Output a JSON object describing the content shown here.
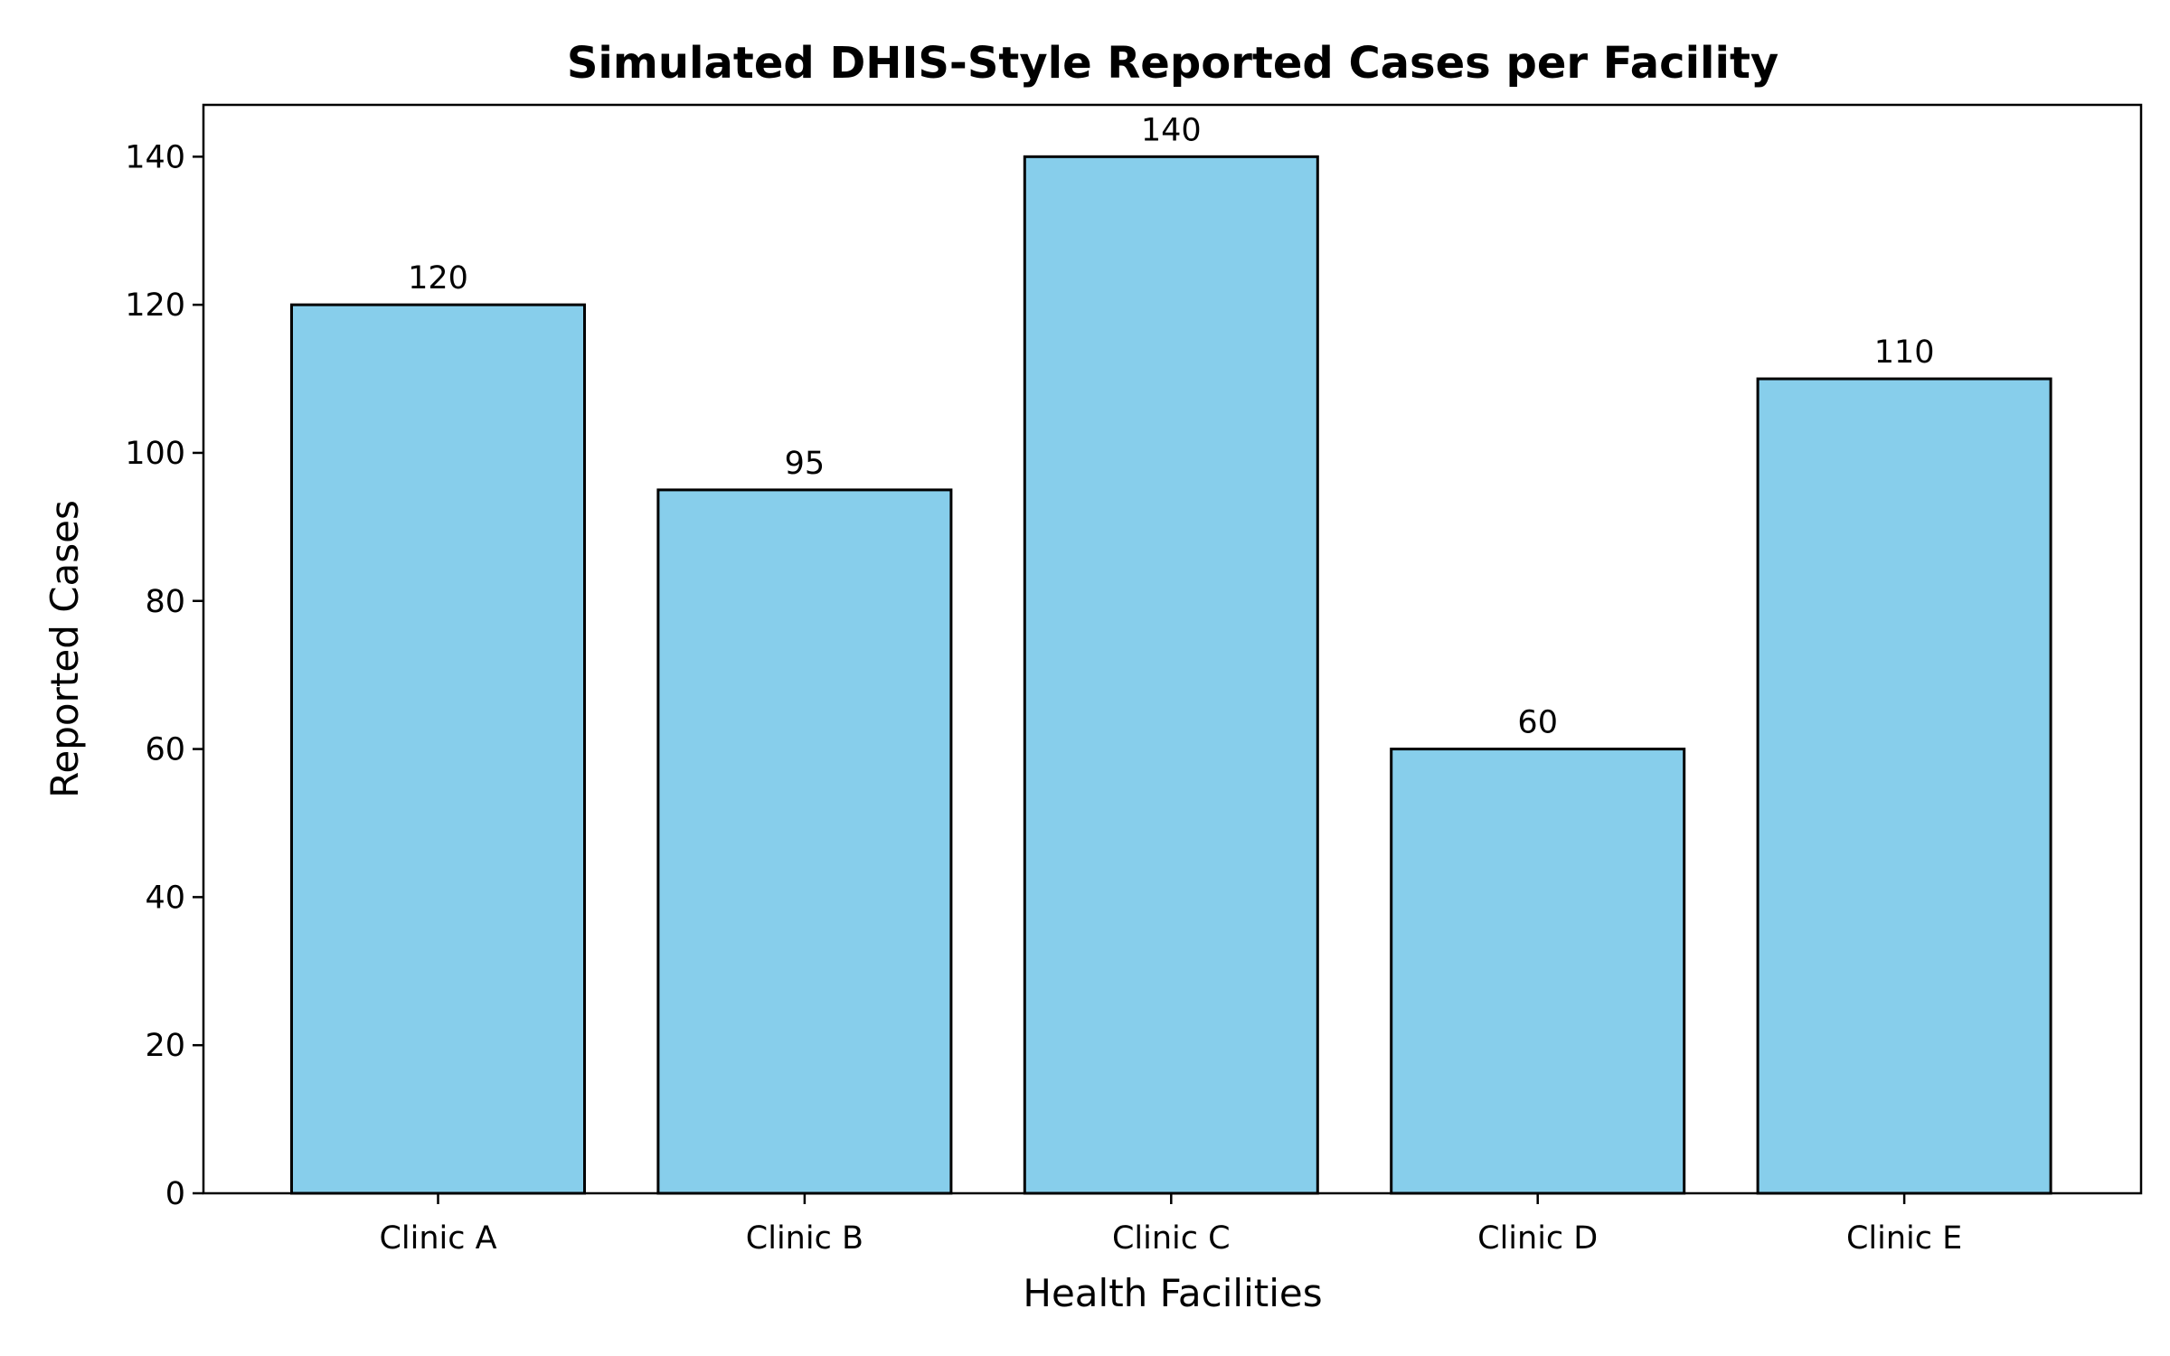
{
  "chart_data": {
    "type": "bar",
    "title": "Simulated DHIS-Style Reported Cases per Facility",
    "xlabel": "Health Facilities",
    "ylabel": "Reported Cases",
    "categories": [
      "Clinic A",
      "Clinic B",
      "Clinic C",
      "Clinic D",
      "Clinic E"
    ],
    "values": [
      120,
      95,
      140,
      60,
      110
    ],
    "data_labels": [
      "120",
      "95",
      "140",
      "60",
      "110"
    ],
    "ylim": [
      0,
      147
    ],
    "yticks": [
      0,
      20,
      40,
      60,
      80,
      100,
      120,
      140
    ],
    "grid": false,
    "bar_color": "#87CEEB",
    "bar_edge_color": "#000000"
  }
}
